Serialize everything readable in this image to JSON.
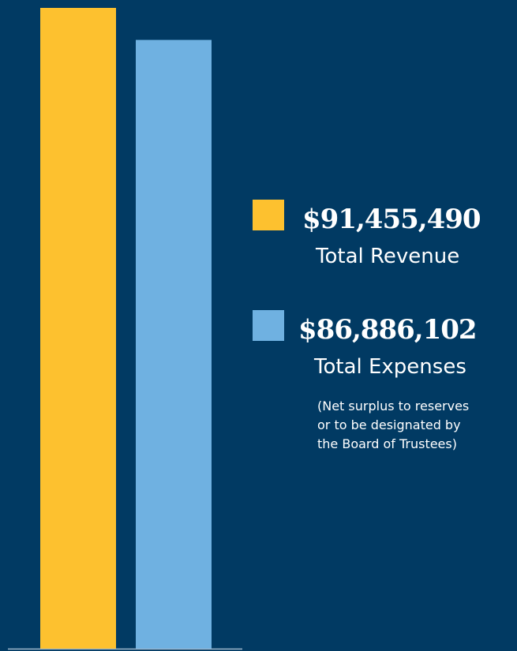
{
  "chart_data": {
    "type": "bar",
    "categories": [
      "Total Revenue",
      "Total Expenses"
    ],
    "values": [
      91455490,
      86886102
    ],
    "value_labels": [
      "$91,455,490",
      "$86,886,102"
    ],
    "colors": [
      "#fdc12f",
      "#6fb1e1"
    ],
    "annotations": [
      "(Net surplus to reserves",
      "or to be designated by",
      "the Board of Trustees)"
    ]
  }
}
